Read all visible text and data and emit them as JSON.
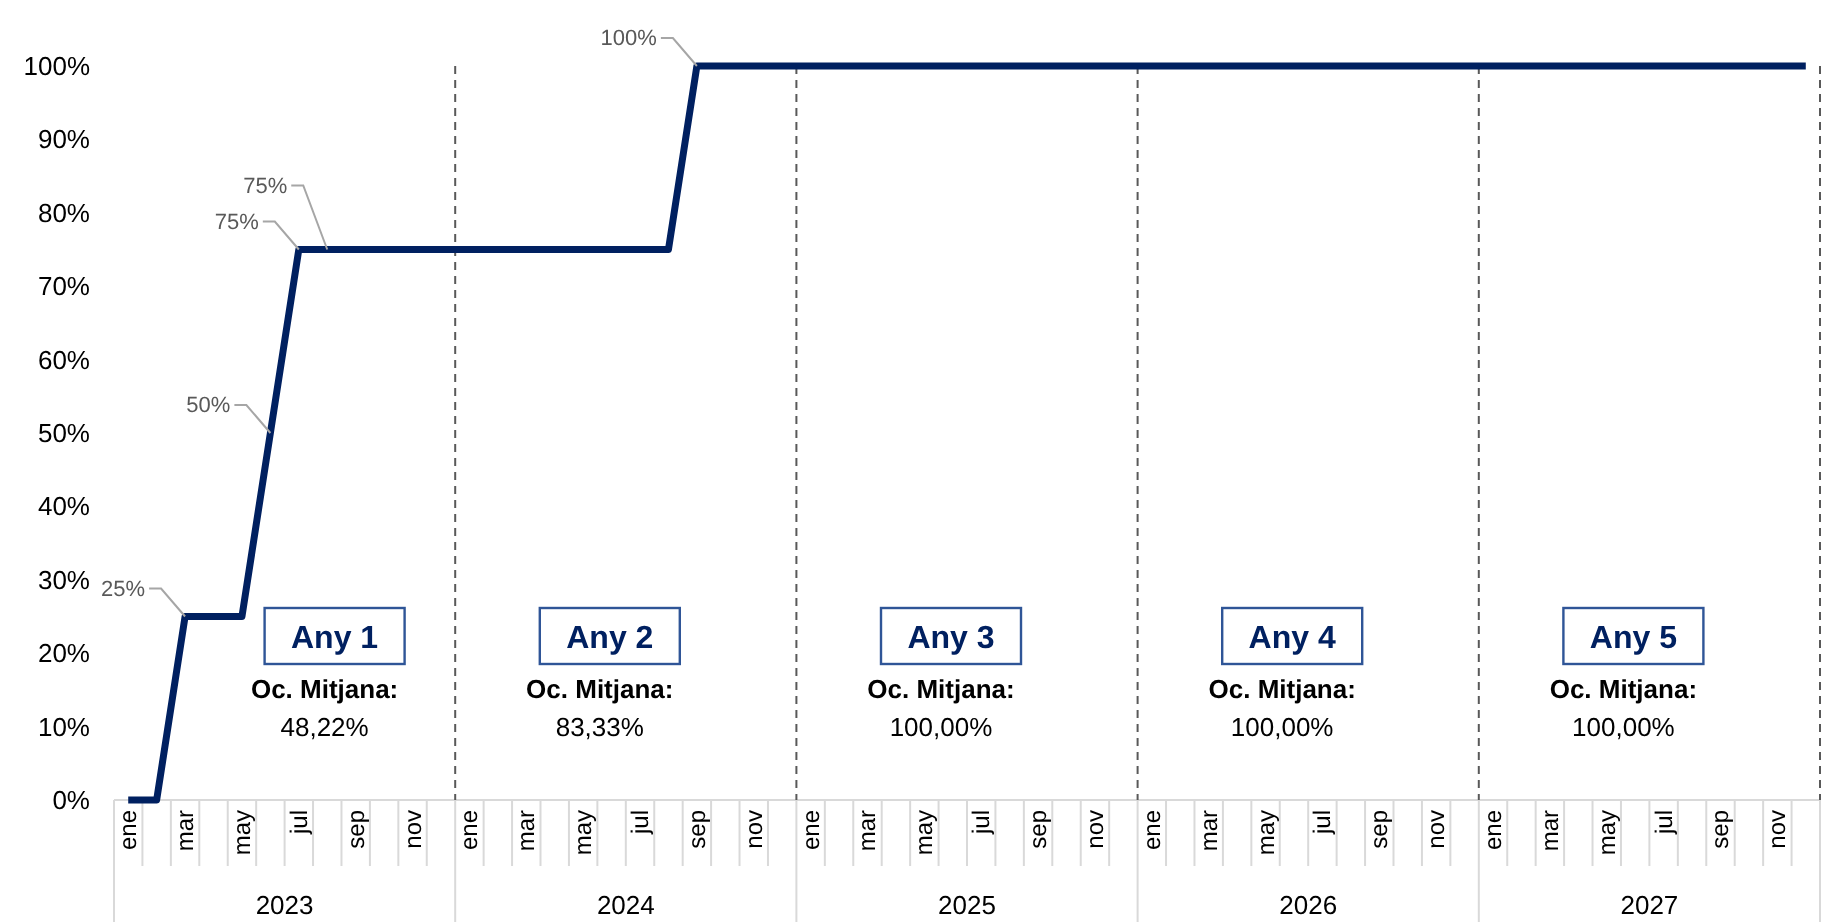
{
  "chart_data": {
    "type": "line",
    "categories": [
      "ene",
      null,
      "mar",
      null,
      "may",
      null,
      "jul",
      null,
      "sep",
      null,
      "nov",
      null,
      "ene",
      null,
      "mar",
      null,
      "may",
      null,
      "jul",
      null,
      "sep",
      null,
      "nov",
      null,
      "ene",
      null,
      "mar",
      null,
      "may",
      null,
      "jul",
      null,
      "sep",
      null,
      "nov",
      null,
      "ene",
      null,
      "mar",
      null,
      "may",
      null,
      "jul",
      null,
      "sep",
      null,
      "nov",
      null,
      "ene",
      null,
      "mar",
      null,
      "may",
      null,
      "jul",
      null,
      "sep",
      null,
      "nov",
      null
    ],
    "series": [
      {
        "color": "#002060",
        "values": [
          0,
          0,
          25,
          25,
          25,
          50,
          75,
          75,
          75,
          75,
          75,
          75,
          75,
          75,
          75,
          75,
          75,
          75,
          75,
          75,
          100,
          100,
          100,
          100,
          100,
          100,
          100,
          100,
          100,
          100,
          100,
          100,
          100,
          100,
          100,
          100,
          100,
          100,
          100,
          100,
          100,
          100,
          100,
          100,
          100,
          100,
          100,
          100,
          100,
          100,
          100,
          100,
          100,
          100,
          100,
          100,
          100,
          100,
          100,
          100
        ],
        "value_labels": [
          null,
          null,
          "25%",
          null,
          null,
          "50%",
          "75%",
          "75%",
          null,
          null,
          null,
          null,
          null,
          null,
          null,
          null,
          null,
          null,
          null,
          null,
          "100%",
          null,
          null,
          null,
          null,
          null,
          null,
          null,
          null,
          null,
          null,
          null,
          null,
          null,
          null,
          null,
          null,
          null,
          null,
          null,
          null,
          null,
          null,
          null,
          null,
          null,
          null,
          null,
          null,
          null,
          null,
          null,
          null,
          null,
          null,
          null,
          null,
          null,
          null,
          null
        ]
      }
    ],
    "ylim": [
      0,
      100
    ],
    "yticks": [
      {
        "value": 0,
        "label": "0%"
      },
      {
        "value": 10,
        "label": "10%"
      },
      {
        "value": 20,
        "label": "20%"
      },
      {
        "value": 30,
        "label": "30%"
      },
      {
        "value": 40,
        "label": "40%"
      },
      {
        "value": 50,
        "label": "50%"
      },
      {
        "value": 60,
        "label": "60%"
      },
      {
        "value": 70,
        "label": "70%"
      },
      {
        "value": 80,
        "label": "80%"
      },
      {
        "value": 90,
        "label": "90%"
      },
      {
        "value": 100,
        "label": "100%"
      }
    ],
    "grid": false,
    "marker": "none",
    "line_style": "solid",
    "annotations": [
      "2023",
      "2024",
      "2025",
      "2026",
      "2027",
      "Any 1",
      "Oc. Mitjana:",
      "48,22%",
      "Any 2",
      "Oc. Mitjana:",
      "83,33%",
      "Any 3",
      "Oc. Mitjana:",
      "100,00%",
      "Any 4",
      "Oc. Mitjana:",
      "100,00%",
      "Any 5",
      "Oc. Mitjana:",
      "100,00%"
    ]
  }
}
